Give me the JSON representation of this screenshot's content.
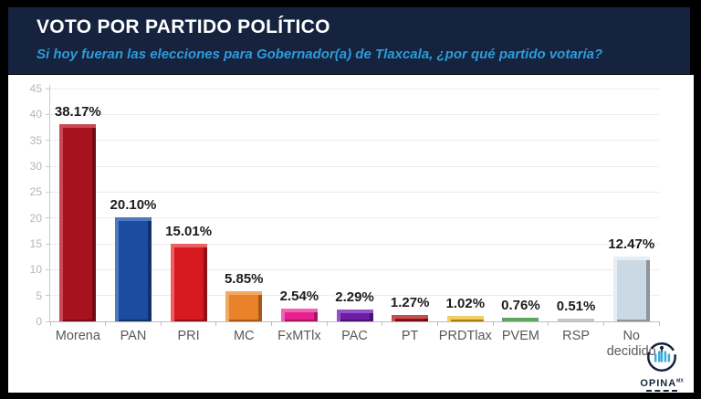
{
  "header": {
    "title": "VOTO POR PARTIDO POLÍTICO",
    "subtitle": "Si hoy fueran las elecciones para Gobernador(a) de Tlaxcala, ¿por qué partido votaría?",
    "bg_color": "#15233F",
    "title_color": "#FFFFFF",
    "subtitle_color": "#2E9BDA"
  },
  "chart_data": {
    "type": "bar",
    "title": "",
    "xlabel": "",
    "ylabel": "",
    "categories": [
      "Morena",
      "PAN",
      "PRI",
      "MC",
      "FxMTlx",
      "PAC",
      "PT",
      "PRDTlax",
      "PVEM",
      "RSP",
      "No decidido"
    ],
    "values": [
      38.17,
      20.1,
      15.01,
      5.85,
      2.54,
      2.29,
      1.27,
      1.02,
      0.76,
      0.51,
      12.47
    ],
    "value_labels": [
      "38.17%",
      "20.10%",
      "15.01%",
      "5.85%",
      "2.54%",
      "2.29%",
      "1.27%",
      "1.02%",
      "0.76%",
      "0.51%",
      "12.47%"
    ],
    "bar_colors": [
      "#A6131F",
      "#1C4CA0",
      "#D61A20",
      "#E8832C",
      "#E7218F",
      "#6C1FA6",
      "#A31418",
      "#E7B41F",
      "#2F7D33",
      "#A2A2A2",
      "#CBD9E4"
    ],
    "bar_colors_light": [
      "#C94A54",
      "#4F79C2",
      "#EE5F63",
      "#F3A95F",
      "#F164B4",
      "#9354C6",
      "#C74E51",
      "#F2CE60",
      "#5FA562",
      "#C6C6C6",
      "#E6EEF5"
    ],
    "bar_colors_dark": [
      "#6F0C14",
      "#0F3168",
      "#8F1115",
      "#A85716",
      "#A8135F",
      "#470E73",
      "#6E0C0F",
      "#A87F0F",
      "#1C4F1F",
      "#747474",
      "#8C959C"
    ],
    "ylim": [
      0,
      45
    ],
    "yticks": [
      0,
      5,
      10,
      15,
      20,
      25,
      30,
      35,
      40,
      45
    ],
    "grid": true,
    "legend": null
  },
  "logo": {
    "text": "OPINA",
    "suffix": "MX",
    "icon_color": "#15233F",
    "bar_color": "#3FA9DC"
  }
}
